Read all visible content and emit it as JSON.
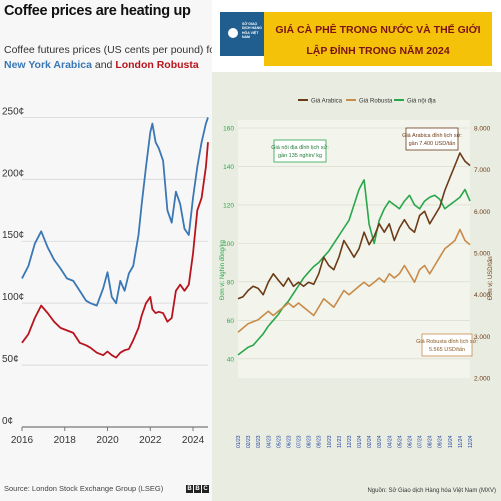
{
  "left_panel": {
    "title": "Coffee prices are heating up",
    "subtitle_line1": "Coffee futures prices (US cents per pound) for",
    "series_label_arabica": "New York Arabica",
    "conjunction": "and",
    "series_label_robusta": "London Robusta",
    "source": "Source: London Stock Exchange Group (LSEG)",
    "brand": [
      "B",
      "B",
      "C"
    ]
  },
  "right_panel": {
    "logo_text": "SỞ GIAO DỊCH HÀNG HÓA VIỆT NAM",
    "title_line1": "GIÁ CÀ PHÊ TRONG NƯỚC VÀ THẾ GIỚI",
    "title_line2": "LẬP ĐỈNH TRONG NĂM 2024",
    "note": "Nguồn: Sở Giao dịch Hàng hóa Việt Nam (MXV)"
  },
  "colors": {
    "arabica": "#3b77b5",
    "robusta": "#b8141d",
    "green": "#2aa64a",
    "brown": "#6b3b17",
    "tan": "#c88b4a",
    "banner": "#f5c20a",
    "title_red": "#7a1414",
    "date_blue": "#1b3f9e"
  },
  "chart_data": [
    {
      "type": "line",
      "title": "Coffee prices are heating up",
      "subtitle": "Coffee futures prices (US cents per pound) for New York Arabica and London Robusta",
      "xlabel": "",
      "ylabel": "",
      "x_ticks": [
        "2016",
        "2018",
        "2020",
        "2022",
        "2024"
      ],
      "y_ticks": [
        "0¢",
        "50¢",
        "100¢",
        "150¢",
        "200¢",
        "250¢"
      ],
      "xlim": [
        2016,
        2024.7
      ],
      "ylim": [
        0,
        260
      ],
      "grid": true,
      "series": [
        {
          "name": "New York Arabica",
          "x": [
            2016.0,
            2016.3,
            2016.6,
            2016.9,
            2017.2,
            2017.5,
            2017.8,
            2018.1,
            2018.4,
            2018.7,
            2019.0,
            2019.2,
            2019.5,
            2019.8,
            2020.0,
            2020.2,
            2020.4,
            2020.6,
            2020.8,
            2021.0,
            2021.2,
            2021.45,
            2021.6,
            2021.8,
            2022.0,
            2022.1,
            2022.25,
            2022.4,
            2022.6,
            2022.8,
            2023.0,
            2023.2,
            2023.4,
            2023.6,
            2023.8,
            2024.0,
            2024.2,
            2024.4,
            2024.6,
            2024.7
          ],
          "values": [
            120,
            130,
            148,
            158,
            145,
            135,
            128,
            120,
            118,
            110,
            102,
            100,
            98,
            112,
            125,
            105,
            100,
            118,
            110,
            124,
            130,
            155,
            180,
            210,
            238,
            245,
            230,
            225,
            215,
            175,
            165,
            190,
            180,
            160,
            155,
            185,
            210,
            230,
            245,
            250
          ]
        },
        {
          "name": "London Robusta",
          "x": [
            2016.0,
            2016.3,
            2016.6,
            2016.9,
            2017.2,
            2017.5,
            2017.8,
            2018.1,
            2018.4,
            2018.7,
            2019.0,
            2019.2,
            2019.5,
            2019.8,
            2020.0,
            2020.2,
            2020.4,
            2020.6,
            2020.8,
            2021.0,
            2021.2,
            2021.45,
            2021.6,
            2021.8,
            2022.0,
            2022.1,
            2022.25,
            2022.4,
            2022.6,
            2022.8,
            2023.0,
            2023.2,
            2023.4,
            2023.6,
            2023.8,
            2024.0,
            2024.2,
            2024.4,
            2024.6,
            2024.7
          ],
          "values": [
            68,
            75,
            88,
            98,
            92,
            85,
            80,
            78,
            76,
            68,
            66,
            64,
            60,
            58,
            61,
            58,
            56,
            60,
            62,
            63,
            70,
            80,
            90,
            100,
            105,
            95,
            92,
            93,
            92,
            85,
            88,
            110,
            115,
            110,
            115,
            140,
            175,
            185,
            210,
            230
          ]
        }
      ]
    },
    {
      "type": "line",
      "title": "GIÁ CÀ PHÊ TRONG NƯỚC VÀ THẾ GIỚI LẬP ĐỈNH TRONG NĂM 2024",
      "ylabel_left": "Đơn vị: Nghìn đồng/kg",
      "ylabel_right": "Đơn vị: USD/tấn",
      "y_left_ticks": [
        "40",
        "60",
        "80",
        "100",
        "120",
        "140",
        "160"
      ],
      "y_left_range": [
        30,
        160
      ],
      "y_right_ticks": [
        "2.000",
        "3.000",
        "4.000",
        "5.000",
        "6.000",
        "7.000",
        "8.000"
      ],
      "y_right_range": [
        2000,
        8000
      ],
      "legend": [
        "Giá Arabica",
        "Giá Robusta",
        "Giá nội địa"
      ],
      "legend_position": "top-left",
      "x_ticks": [
        "01/23",
        "02/23",
        "03/23",
        "04/23",
        "05/23",
        "06/23",
        "07/23",
        "08/23",
        "09/23",
        "10/23",
        "11/23",
        "12/23",
        "01/24",
        "02/24",
        "03/24",
        "04/24",
        "05/24",
        "06/24",
        "07/24",
        "08/24",
        "09/24",
        "10/24",
        "11/24",
        "12/24"
      ],
      "annotations": [
        "Giá nội địa đỉnh lịch sử: gần 135 nghìn/ kg",
        "Giá Arabica đỉnh lịch sử: gần 7.400 USD/tấn",
        "Giá Robusta đỉnh lịch sử: 5.565 USD/tấn"
      ],
      "series": [
        {
          "name": "Giá nội địa",
          "axis": "left",
          "x": [
            0,
            0.5,
            1,
            1.5,
            2,
            2.5,
            3,
            3.5,
            4,
            4.5,
            5,
            5.5,
            6,
            6.5,
            7,
            7.5,
            8,
            8.5,
            9,
            9.5,
            10,
            10.5,
            11,
            11.5,
            12,
            12.5,
            13,
            13.5,
            14,
            14.5,
            15,
            15.5,
            16,
            16.5,
            17,
            17.5,
            18,
            18.5,
            19,
            19.5,
            20,
            20.5,
            21,
            21.5,
            22,
            22.5,
            23
          ],
          "values": [
            42,
            44,
            46,
            47,
            50,
            53,
            57,
            60,
            63,
            67,
            70,
            74,
            78,
            82,
            85,
            88,
            90,
            93,
            96,
            100,
            104,
            108,
            112,
            120,
            128,
            133,
            110,
            100,
            112,
            118,
            122,
            120,
            118,
            122,
            125,
            120,
            118,
            122,
            124,
            125,
            123,
            118,
            120,
            122,
            124,
            128,
            122
          ]
        },
        {
          "name": "Giá Arabica",
          "axis": "right",
          "x": [
            0,
            0.5,
            1,
            1.5,
            2,
            2.5,
            3,
            3.5,
            4,
            4.5,
            5,
            5.5,
            6,
            6.5,
            7,
            7.5,
            8,
            8.5,
            9,
            9.5,
            10,
            10.5,
            11,
            11.5,
            12,
            12.5,
            13,
            13.5,
            14,
            14.5,
            15,
            15.5,
            16,
            16.5,
            17,
            17.5,
            18,
            18.5,
            19,
            19.5,
            20,
            20.5,
            21,
            21.5,
            22,
            22.5,
            23
          ],
          "values": [
            3900,
            3950,
            4100,
            4200,
            4150,
            4000,
            4300,
            4500,
            4350,
            4200,
            4400,
            4200,
            4300,
            4200,
            4300,
            4250,
            4500,
            4900,
            4700,
            4600,
            4900,
            5300,
            5100,
            4900,
            5100,
            5500,
            5200,
            5400,
            5700,
            5500,
            5700,
            5300,
            5600,
            5800,
            5600,
            5500,
            5900,
            6000,
            5700,
            5900,
            6100,
            6500,
            6800,
            7100,
            7400,
            7200,
            7100
          ]
        },
        {
          "name": "Giá Robusta",
          "axis": "right",
          "x": [
            0,
            0.5,
            1,
            1.5,
            2,
            2.5,
            3,
            3.5,
            4,
            4.5,
            5,
            5.5,
            6,
            6.5,
            7,
            7.5,
            8,
            8.5,
            9,
            9.5,
            10,
            10.5,
            11,
            11.5,
            12,
            12.5,
            13,
            13.5,
            14,
            14.5,
            15,
            15.5,
            16,
            16.5,
            17,
            17.5,
            18,
            18.5,
            19,
            19.5,
            20,
            20.5,
            21,
            21.5,
            22,
            22.5,
            23
          ],
          "values": [
            3100,
            3200,
            3300,
            3350,
            3400,
            3500,
            3600,
            3500,
            3600,
            3700,
            3800,
            3700,
            3800,
            3700,
            3600,
            3500,
            3700,
            3900,
            3800,
            3700,
            3900,
            4100,
            4000,
            4100,
            4200,
            4300,
            4200,
            4300,
            4400,
            4300,
            4500,
            4400,
            4500,
            4700,
            4500,
            4300,
            4600,
            4700,
            4500,
            4700,
            4900,
            5100,
            5200,
            5300,
            5565,
            5300,
            5200
          ]
        }
      ]
    }
  ]
}
